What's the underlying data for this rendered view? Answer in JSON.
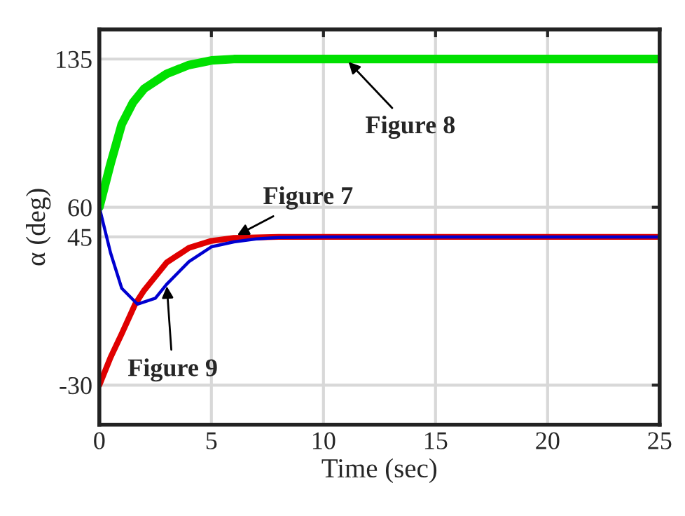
{
  "chart_data": {
    "type": "line",
    "xlabel": "Time (sec)",
    "ylabel": "α (deg)",
    "xlim": [
      0,
      25
    ],
    "xticks": [
      0,
      5,
      10,
      15,
      20,
      25
    ],
    "ylim": [
      -50,
      150
    ],
    "yticks": [
      -30,
      45,
      60,
      135
    ],
    "grid": true,
    "marker": "none",
    "line_style": "solid",
    "series": [
      {
        "color": "#00e000",
        "x": [
          0,
          0.5,
          1,
          1.5,
          2,
          3,
          4,
          5,
          6,
          8,
          10,
          25
        ],
        "values": [
          60,
          82,
          102,
          113,
          120,
          127.5,
          132,
          134.3,
          135,
          135,
          135,
          135
        ]
      },
      {
        "color": "#e00000",
        "x": [
          0,
          0.5,
          1,
          1.6,
          2,
          3,
          4,
          5,
          6,
          8,
          10,
          25
        ],
        "values": [
          -30,
          -16,
          -4,
          11,
          18,
          32,
          39.5,
          43,
          44.5,
          45,
          45,
          45
        ]
      },
      {
        "color": "#0000d0",
        "x": [
          0,
          0.5,
          1,
          1.7,
          2.5,
          3,
          4,
          5,
          6,
          7,
          8,
          10,
          25
        ],
        "values": [
          60,
          37,
          19,
          11,
          14,
          21,
          32.5,
          40,
          42.5,
          44,
          44.7,
          45,
          45
        ]
      }
    ],
    "annotations": [
      {
        "text": "Figure 8",
        "x": 11,
        "y": 135
      },
      {
        "text": "Figure 7",
        "x": 6,
        "y": 45
      },
      {
        "text": "Figure 9",
        "x": 3,
        "y": 22
      }
    ]
  }
}
